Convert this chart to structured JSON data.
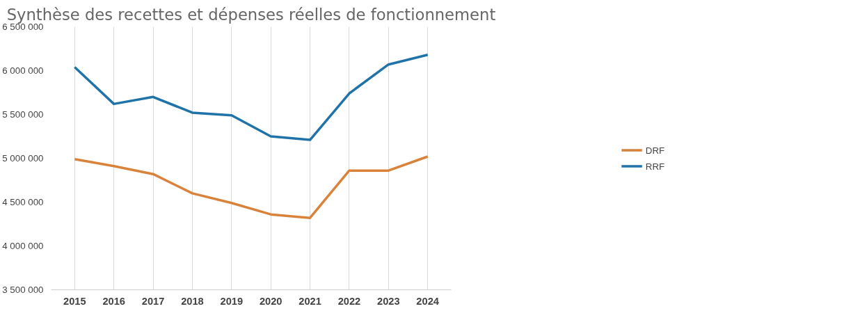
{
  "chart_data": {
    "type": "line",
    "title": "Synthèse des recettes et dépenses réelles de fonctionnement",
    "categories": [
      "2015",
      "2016",
      "2017",
      "2018",
      "2019",
      "2020",
      "2021",
      "2022",
      "2023",
      "2024"
    ],
    "series": [
      {
        "name": "DRF",
        "color": "#d9833a",
        "values": [
          4990000,
          4910000,
          4820000,
          4600000,
          4490000,
          4360000,
          4320000,
          4860000,
          4860000,
          5020000
        ]
      },
      {
        "name": "RRF",
        "color": "#1f73a8",
        "values": [
          6040000,
          5620000,
          5700000,
          5520000,
          5490000,
          5250000,
          5210000,
          5740000,
          6070000,
          6180000
        ]
      }
    ],
    "ylim": [
      3500000,
      6500000
    ],
    "yticks": [
      {
        "value": 3500000,
        "label": "3 500 000"
      },
      {
        "value": 4000000,
        "label": "4 000 000"
      },
      {
        "value": 4500000,
        "label": "4 500 000"
      },
      {
        "value": 5000000,
        "label": "5 000 000"
      },
      {
        "value": 5500000,
        "label": "5 500 000"
      },
      {
        "value": 6000000,
        "label": "6 000 000"
      },
      {
        "value": 6500000,
        "label": "6 500 000"
      }
    ],
    "grid": "x",
    "legend": "right",
    "marker": "none",
    "line_style": "solid"
  }
}
